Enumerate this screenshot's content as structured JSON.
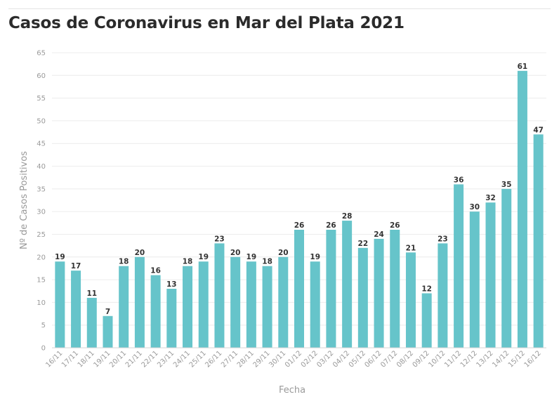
{
  "chart_data": {
    "type": "bar",
    "title": "Casos de Coronavirus en Mar del Plata 2021",
    "xlabel": "Fecha",
    "ylabel": "Nº de Casos Positivos",
    "ylim": [
      0,
      65
    ],
    "yticks": [
      0,
      5,
      10,
      15,
      20,
      25,
      30,
      35,
      40,
      45,
      50,
      55,
      60,
      65
    ],
    "grid": true,
    "categories": [
      "16/11",
      "17/11",
      "18/11",
      "19/11",
      "20/11",
      "21/11",
      "22/11",
      "23/11",
      "24/11",
      "25/11",
      "26/11",
      "27/11",
      "28/11",
      "29/11",
      "30/11",
      "01/12",
      "02/12",
      "03/12",
      "04/12",
      "05/12",
      "06/12",
      "07/12",
      "08/12",
      "09/12",
      "10/12",
      "11/12",
      "12/12",
      "13/12",
      "14/12",
      "15/12",
      "16/12"
    ],
    "values": [
      19,
      17,
      11,
      7,
      18,
      20,
      16,
      13,
      18,
      19,
      23,
      20,
      19,
      18,
      20,
      26,
      19,
      26,
      28,
      22,
      24,
      26,
      21,
      12,
      23,
      36,
      30,
      32,
      35,
      61,
      47
    ],
    "bar_color": "#66c4ca"
  }
}
